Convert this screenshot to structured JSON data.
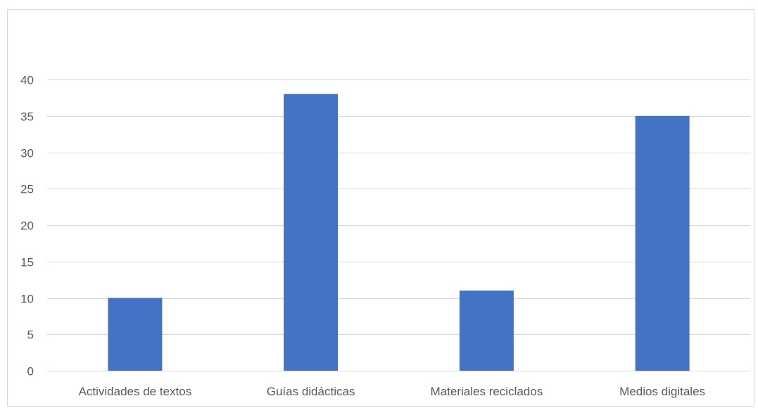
{
  "chart_data": {
    "type": "bar",
    "title": "",
    "xlabel": "",
    "ylabel": "",
    "categories": [
      "Actividades de textos",
      "Guías didácticas",
      "Materiales reciclados",
      "Medios digitales"
    ],
    "values": [
      10,
      38,
      11,
      35
    ],
    "ylim": [
      0,
      40
    ],
    "yticks": [
      0,
      5,
      10,
      15,
      20,
      25,
      30,
      35,
      40
    ],
    "grid": true,
    "legend": "none",
    "bar_color": "#4472C4",
    "grid_color": "#d9d9d9",
    "text_color": "#595959"
  }
}
